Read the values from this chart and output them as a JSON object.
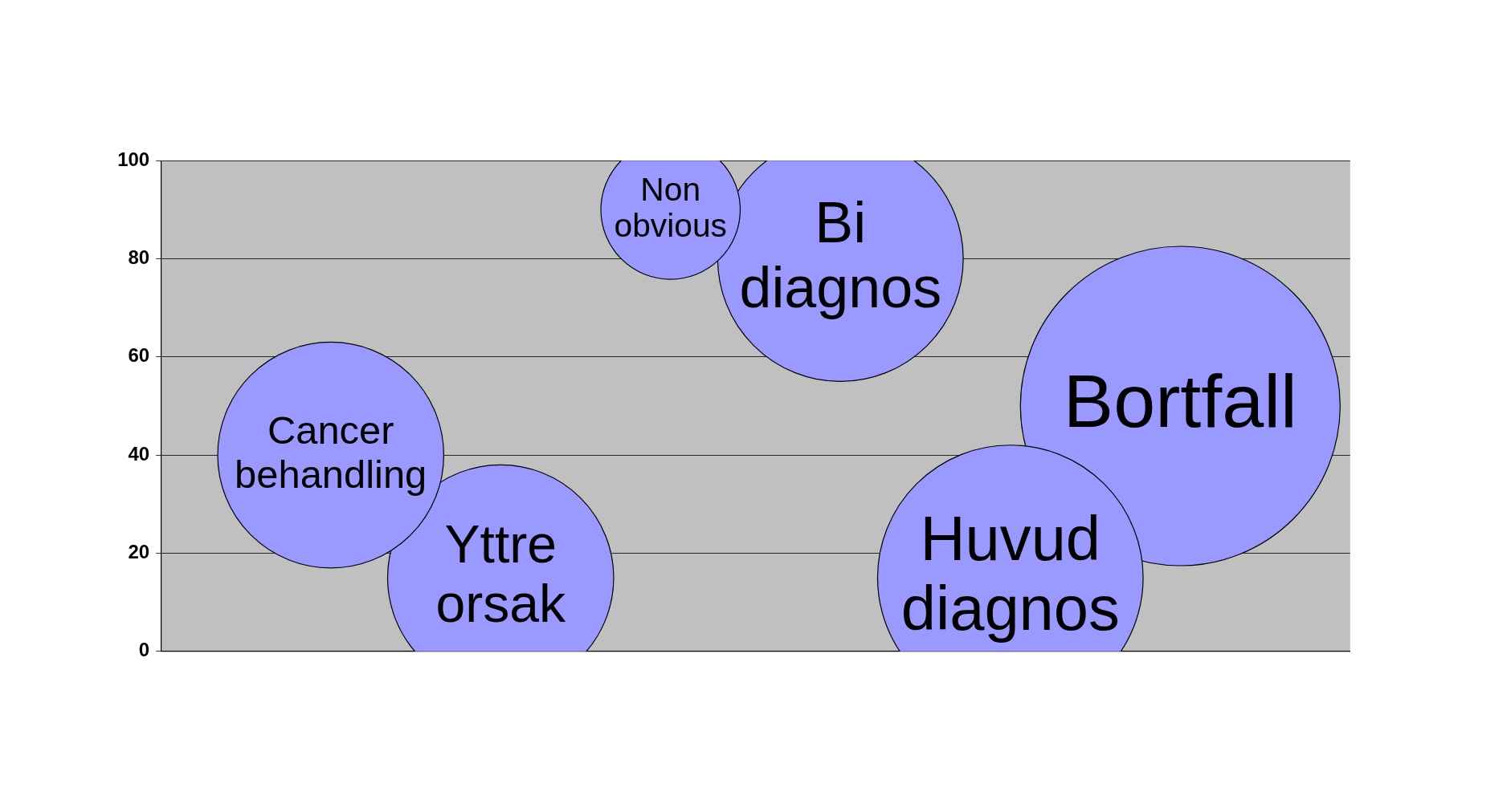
{
  "chart_data": {
    "type": "bubble",
    "categories": [
      null,
      null,
      null,
      null,
      null,
      null
    ],
    "ylim": [
      0,
      100
    ],
    "yticks": [
      0,
      20,
      40,
      60,
      80,
      100
    ],
    "grid": "y",
    "legend": false,
    "tick_labels": "y",
    "series": [
      {
        "name": "Cancer behandling",
        "color": "#9999ff",
        "values": [
          40,
          null,
          null,
          null,
          null,
          null
        ],
        "sizes": [
          0.5,
          null,
          null,
          null,
          null,
          null
        ]
      },
      {
        "name": "Yttre orsak",
        "color": "#9999ff",
        "values": [
          null,
          15,
          null,
          null,
          null,
          null
        ],
        "sizes": [
          null,
          0.5,
          null,
          null,
          null,
          null
        ]
      },
      {
        "name": "Non obvious",
        "color": "#9999ff",
        "values": [
          null,
          null,
          90,
          null,
          null,
          null
        ],
        "sizes": [
          null,
          null,
          0.19,
          null,
          null,
          null
        ]
      },
      {
        "name": "Bi diagnos",
        "color": "#9999ff",
        "values": [
          null,
          null,
          null,
          80,
          null,
          null
        ],
        "sizes": [
          null,
          null,
          null,
          0.59,
          null,
          null
        ]
      },
      {
        "name": "Huvud diagnos",
        "color": "#9999ff",
        "values": [
          null,
          null,
          null,
          null,
          15,
          null
        ],
        "sizes": [
          null,
          null,
          null,
          null,
          0.69,
          null
        ]
      },
      {
        "name": "Bortfall",
        "color": "#9999ff",
        "values": [
          null,
          null,
          null,
          null,
          null,
          50
        ],
        "sizes": [
          null,
          null,
          null,
          null,
          null,
          1
        ]
      }
    ]
  }
}
